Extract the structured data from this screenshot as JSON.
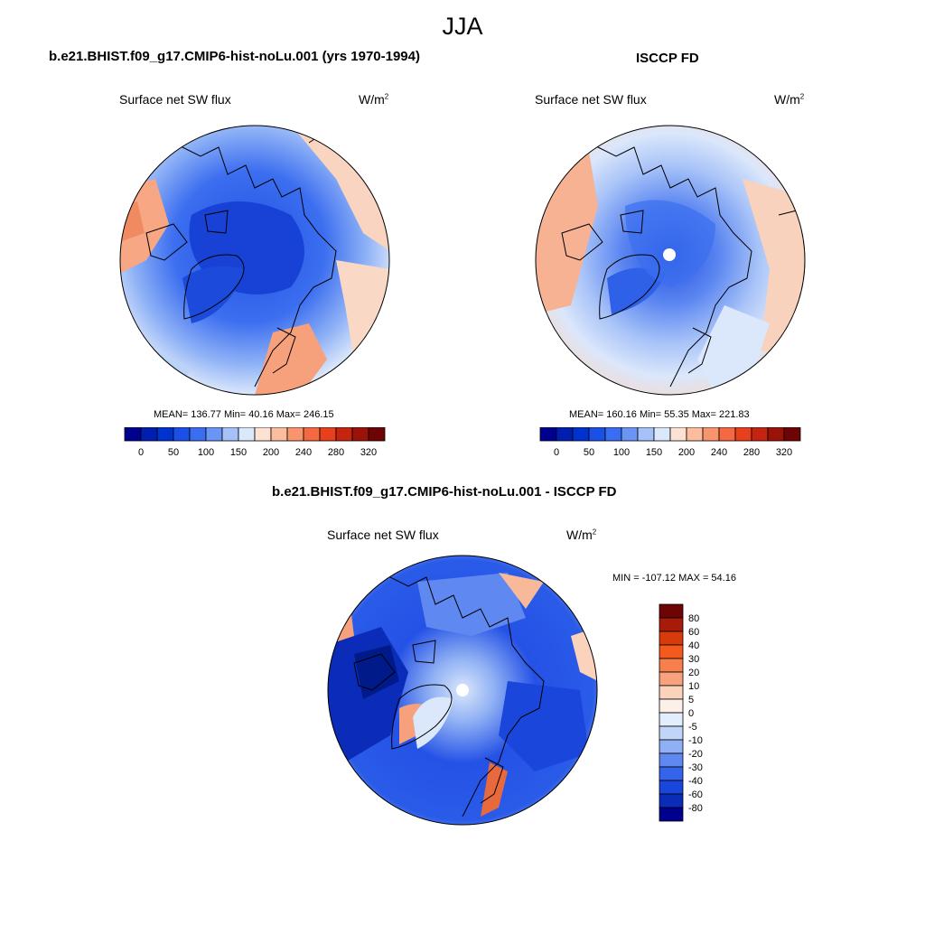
{
  "title": "JJA",
  "panel_model": {
    "title": "b.e21.BHIST.f09_g17.CMIP6-hist-noLu.001 (yrs 1970-1994)",
    "variable": "Surface net SW flux",
    "units_base": "W/m",
    "units_exp": "2",
    "stats": "MEAN= 136.77  Min=  40.16  Max= 246.15"
  },
  "panel_obs": {
    "title": "ISCCP FD",
    "variable": "Surface net SW flux",
    "units_base": "W/m",
    "units_exp": "2",
    "stats": "MEAN= 160.16  Min=  55.35  Max= 221.83"
  },
  "panel_diff": {
    "title": "b.e21.BHIST.f09_g17.CMIP6-hist-noLu.001 - ISCCP FD",
    "variable": "Surface net SW flux",
    "units_base": "W/m",
    "units_exp": "2",
    "stats": "MIN = -107.12 MAX =  54.16"
  },
  "colorbar_abs": {
    "colors": [
      "#00008f",
      "#001fb0",
      "#0032d0",
      "#1a4fe8",
      "#3a6ef2",
      "#6b95f5",
      "#a5c1f8",
      "#d9e8fb",
      "#fde2d3",
      "#fbbd9d",
      "#f8946e",
      "#f46842",
      "#e8401c",
      "#c52510",
      "#9a1208",
      "#6e0404"
    ],
    "labels": [
      "0",
      "50",
      "100",
      "150",
      "200",
      "240",
      "280",
      "320"
    ]
  },
  "colorbar_diff": {
    "colors_top_to_bottom": [
      "#6e0404",
      "#a81b08",
      "#d83a0a",
      "#f45a1e",
      "#f67f4c",
      "#f8a37e",
      "#fbd2bb",
      "#fdf0e8",
      "#e3eefc",
      "#c0d5f8",
      "#8fb0f4",
      "#5f89f0",
      "#3463ec",
      "#1a46dc",
      "#0a2cb8",
      "#00008f"
    ],
    "labels_top_to_bottom": [
      "80",
      "60",
      "40",
      "30",
      "20",
      "10",
      "5",
      "0",
      "-5",
      "-10",
      "-20",
      "-30",
      "-40",
      "-60",
      "-80"
    ]
  }
}
